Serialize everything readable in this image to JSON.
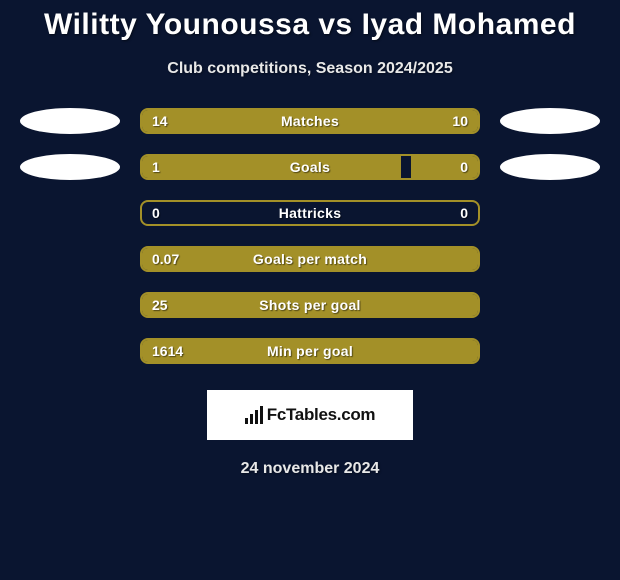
{
  "title": "Wilitty Younoussa vs Iyad Mohamed",
  "subtitle": "Club competitions, Season 2024/2025",
  "date": "24 november 2024",
  "logo_text": "FcTables.com",
  "colors": {
    "background": "#0a1530",
    "bar_fill": "#a39028",
    "bar_border": "#a39028",
    "oval": "#ffffff",
    "text": "#ffffff"
  },
  "bar_fontsize": 14,
  "title_fontsize": 30,
  "subtitle_fontsize": 16,
  "rows": [
    {
      "label": "Matches",
      "left_value": "14",
      "right_value": "10",
      "left_num": 14,
      "right_num": 10,
      "show_ovals": true,
      "left_fill_pct": 58.3,
      "right_fill_pct": 41.7,
      "full": true
    },
    {
      "label": "Goals",
      "left_value": "1",
      "right_value": "0",
      "left_num": 1,
      "right_num": 0,
      "show_ovals": true,
      "left_fill_pct": 77,
      "right_fill_pct": 20,
      "full": false
    },
    {
      "label": "Hattricks",
      "left_value": "0",
      "right_value": "0",
      "left_num": 0,
      "right_num": 0,
      "show_ovals": false,
      "left_fill_pct": 0,
      "right_fill_pct": 0,
      "full": false
    },
    {
      "label": "Goals per match",
      "left_value": "0.07",
      "right_value": "",
      "left_num": 0.07,
      "right_num": null,
      "show_ovals": false,
      "left_fill_pct": 100,
      "right_fill_pct": 0,
      "full": true
    },
    {
      "label": "Shots per goal",
      "left_value": "25",
      "right_value": "",
      "left_num": 25,
      "right_num": null,
      "show_ovals": false,
      "left_fill_pct": 100,
      "right_fill_pct": 0,
      "full": true
    },
    {
      "label": "Min per goal",
      "left_value": "1614",
      "right_value": "",
      "left_num": 1614,
      "right_num": null,
      "show_ovals": false,
      "left_fill_pct": 100,
      "right_fill_pct": 0,
      "full": true
    }
  ]
}
